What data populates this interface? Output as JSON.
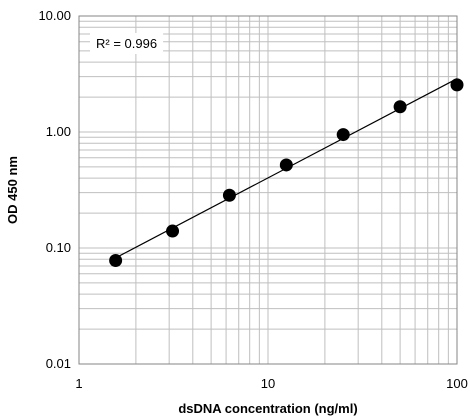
{
  "chart_data": {
    "type": "scatter",
    "title": "",
    "xlabel": "dsDNA concentration (ng/ml)",
    "ylabel": "OD 450 nm",
    "x_scale": "log",
    "y_scale": "log",
    "xlim": [
      1,
      100
    ],
    "ylim": [
      0.01,
      10
    ],
    "x_tick_labels": [
      "1",
      "10",
      "100"
    ],
    "y_tick_labels": [
      "0.01",
      "0.10",
      "1.00",
      "10.00"
    ],
    "grid": true,
    "legend": "none",
    "annotation": "R² = 0.996",
    "trendline": "power fit",
    "x": [
      1.5625,
      3.125,
      6.25,
      12.5,
      25,
      50,
      100
    ],
    "y": [
      0.078,
      0.14,
      0.285,
      0.52,
      0.95,
      1.65,
      2.55
    ],
    "colors": {
      "marker": "#000000",
      "line": "#000000",
      "grid": "#bfbfbf"
    }
  }
}
